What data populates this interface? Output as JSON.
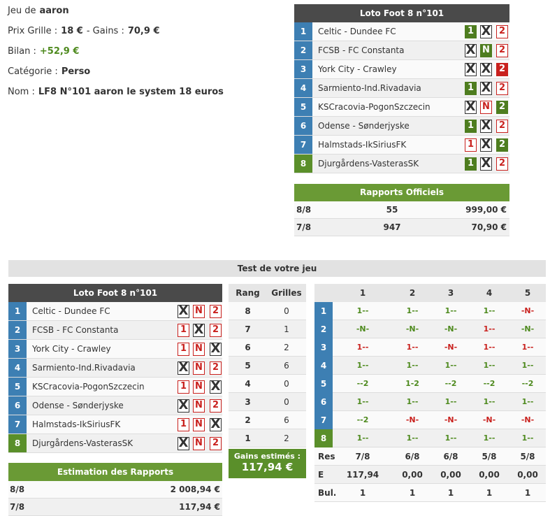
{
  "info": {
    "lines": [
      {
        "parts": [
          "Jeu de",
          "aaron"
        ]
      },
      {
        "parts": [
          "Prix Grille :",
          "18 €",
          "- Gains :",
          "70,9 €"
        ]
      },
      {
        "parts": [
          "Bilan :",
          "+52,9 €"
        ],
        "value_color": "#4e8a1e"
      },
      {
        "parts": [
          "Catégorie :",
          "Perso"
        ]
      },
      {
        "parts": [
          "Nom :",
          "LF8 N°101 aaron le system 18 euros"
        ]
      }
    ]
  },
  "grille": {
    "title": "Loto Foot 8 n°101",
    "rows": [
      {
        "num": "1",
        "color": "#3d7fb3",
        "match": "Celtic - Dundee FC",
        "picks": [
          [
            "1",
            "#4e7d1f",
            true
          ],
          [
            "X",
            "#333",
            false
          ],
          [
            "2",
            "#c9211e",
            false
          ]
        ]
      },
      {
        "num": "2",
        "color": "#3d7fb3",
        "match": "FCSB - FC Constanta",
        "picks": [
          [
            "X",
            "#333",
            false
          ],
          [
            "N",
            "#4e7d1f",
            true
          ],
          [
            "2",
            "#c9211e",
            false
          ]
        ]
      },
      {
        "num": "3",
        "color": "#3d7fb3",
        "match": "York City - Crawley",
        "picks": [
          [
            "X",
            "#333",
            false
          ],
          [
            "X",
            "#333",
            false
          ],
          [
            "2",
            "#c9211e",
            true
          ]
        ]
      },
      {
        "num": "4",
        "color": "#3d7fb3",
        "match": "Sarmiento-Ind.Rivadavia",
        "picks": [
          [
            "1",
            "#4e7d1f",
            true
          ],
          [
            "X",
            "#333",
            false
          ],
          [
            "2",
            "#c9211e",
            false
          ]
        ]
      },
      {
        "num": "5",
        "color": "#3d7fb3",
        "match": "KSCracovia-PogonSzczecin",
        "picks": [
          [
            "X",
            "#333",
            false
          ],
          [
            "N",
            "#c9211e",
            false
          ],
          [
            "2",
            "#4e7d1f",
            true
          ]
        ]
      },
      {
        "num": "6",
        "color": "#3d7fb3",
        "match": "Odense - Sønderjyske",
        "picks": [
          [
            "1",
            "#4e7d1f",
            true
          ],
          [
            "X",
            "#333",
            false
          ],
          [
            "2",
            "#c9211e",
            false
          ]
        ]
      },
      {
        "num": "7",
        "color": "#3d7fb3",
        "match": "Halmstads-IkSiriusFK",
        "picks": [
          [
            "1",
            "#c9211e",
            false
          ],
          [
            "X",
            "#333",
            false
          ],
          [
            "2",
            "#4e7d1f",
            true
          ]
        ]
      },
      {
        "num": "8",
        "color": "#5a8f2a",
        "match": "Djurgårdens-VasterasSK",
        "picks": [
          [
            "1",
            "#4e7d1f",
            true
          ],
          [
            "X",
            "#333",
            false
          ],
          [
            "2",
            "#c9211e",
            false
          ]
        ]
      }
    ]
  },
  "rapports": {
    "title": "Rapports Officiels",
    "rows": [
      [
        "8/8",
        "55",
        "999,00 €"
      ],
      [
        "7/8",
        "947",
        "70,90 €"
      ]
    ]
  },
  "test": {
    "title": "Test de votre jeu",
    "grille": {
      "title": "Loto Foot 8 n°101",
      "rows": [
        {
          "num": "1",
          "color": "#3d7fb3",
          "match": "Celtic - Dundee FC",
          "picks": [
            [
              "X",
              "#333",
              false
            ],
            [
              "N",
              "#c9211e",
              false
            ],
            [
              "2",
              "#c9211e",
              false
            ]
          ]
        },
        {
          "num": "2",
          "color": "#3d7fb3",
          "match": "FCSB - FC Constanta",
          "picks": [
            [
              "1",
              "#c9211e",
              false
            ],
            [
              "X",
              "#333",
              false
            ],
            [
              "2",
              "#c9211e",
              false
            ]
          ]
        },
        {
          "num": "3",
          "color": "#3d7fb3",
          "match": "York City - Crawley",
          "picks": [
            [
              "1",
              "#c9211e",
              false
            ],
            [
              "N",
              "#c9211e",
              false
            ],
            [
              "X",
              "#333",
              false
            ]
          ]
        },
        {
          "num": "4",
          "color": "#3d7fb3",
          "match": "Sarmiento-Ind.Rivadavia",
          "picks": [
            [
              "X",
              "#333",
              false
            ],
            [
              "N",
              "#c9211e",
              false
            ],
            [
              "2",
              "#c9211e",
              false
            ]
          ]
        },
        {
          "num": "5",
          "color": "#3d7fb3",
          "match": "KSCracovia-PogonSzczecin",
          "picks": [
            [
              "1",
              "#c9211e",
              false
            ],
            [
              "N",
              "#c9211e",
              false
            ],
            [
              "X",
              "#333",
              false
            ]
          ]
        },
        {
          "num": "6",
          "color": "#3d7fb3",
          "match": "Odense - Sønderjyske",
          "picks": [
            [
              "X",
              "#333",
              false
            ],
            [
              "N",
              "#c9211e",
              false
            ],
            [
              "2",
              "#c9211e",
              false
            ]
          ]
        },
        {
          "num": "7",
          "color": "#3d7fb3",
          "match": "Halmstads-IkSiriusFK",
          "picks": [
            [
              "1",
              "#c9211e",
              false
            ],
            [
              "N",
              "#c9211e",
              false
            ],
            [
              "X",
              "#333",
              false
            ]
          ]
        },
        {
          "num": "8",
          "color": "#5a8f2a",
          "match": "Djurgårdens-VasterasSK",
          "picks": [
            [
              "X",
              "#333",
              false
            ],
            [
              "N",
              "#c9211e",
              false
            ],
            [
              "2",
              "#c9211e",
              false
            ]
          ]
        }
      ]
    },
    "rangs": {
      "headers": [
        "Rang",
        "Grilles"
      ],
      "rows": [
        [
          8,
          0
        ],
        [
          7,
          1
        ],
        [
          6,
          2
        ],
        [
          5,
          6
        ],
        [
          4,
          0
        ],
        [
          3,
          0
        ],
        [
          2,
          6
        ],
        [
          1,
          2
        ]
      ]
    },
    "gains": {
      "label": "Gains estimés :",
      "value": "117,94 €"
    },
    "estimation": {
      "title": "Estimation des Rapports",
      "rows": [
        [
          "8/8",
          "2 008,94 €"
        ],
        [
          "7/8",
          "117,94 €"
        ]
      ]
    },
    "combis": {
      "headers": [
        "1",
        "2",
        "3",
        "4",
        "5"
      ],
      "rows": [
        {
          "num": "1",
          "color": "#3d7fb3",
          "cells": [
            [
              "1--",
              "#4e8a1e"
            ],
            [
              "1--",
              "#4e8a1e"
            ],
            [
              "1--",
              "#4e8a1e"
            ],
            [
              "1--",
              "#4e8a1e"
            ],
            [
              "-N-",
              "#c9211e"
            ]
          ]
        },
        {
          "num": "2",
          "color": "#3d7fb3",
          "cells": [
            [
              "-N-",
              "#4e8a1e"
            ],
            [
              "-N-",
              "#4e8a1e"
            ],
            [
              "-N-",
              "#4e8a1e"
            ],
            [
              "1--",
              "#c9211e"
            ],
            [
              "-N-",
              "#4e8a1e"
            ]
          ]
        },
        {
          "num": "3",
          "color": "#3d7fb3",
          "cells": [
            [
              "1--",
              "#c9211e"
            ],
            [
              "1--",
              "#c9211e"
            ],
            [
              "-N-",
              "#c9211e"
            ],
            [
              "1--",
              "#c9211e"
            ],
            [
              "1--",
              "#c9211e"
            ]
          ]
        },
        {
          "num": "4",
          "color": "#3d7fb3",
          "cells": [
            [
              "1--",
              "#4e8a1e"
            ],
            [
              "1--",
              "#4e8a1e"
            ],
            [
              "1--",
              "#4e8a1e"
            ],
            [
              "1--",
              "#4e8a1e"
            ],
            [
              "1--",
              "#4e8a1e"
            ]
          ]
        },
        {
          "num": "5",
          "color": "#3d7fb3",
          "cells": [
            [
              "--2",
              "#4e8a1e"
            ],
            [
              "1-2",
              "#4e8a1e"
            ],
            [
              "--2",
              "#4e8a1e"
            ],
            [
              "--2",
              "#4e8a1e"
            ],
            [
              "--2",
              "#4e8a1e"
            ]
          ]
        },
        {
          "num": "6",
          "color": "#3d7fb3",
          "cells": [
            [
              "1--",
              "#4e8a1e"
            ],
            [
              "1--",
              "#4e8a1e"
            ],
            [
              "1--",
              "#4e8a1e"
            ],
            [
              "1--",
              "#4e8a1e"
            ],
            [
              "1--",
              "#4e8a1e"
            ]
          ]
        },
        {
          "num": "7",
          "color": "#3d7fb3",
          "cells": [
            [
              "--2",
              "#4e8a1e"
            ],
            [
              "-N-",
              "#c9211e"
            ],
            [
              "-N-",
              "#c9211e"
            ],
            [
              "-N-",
              "#c9211e"
            ],
            [
              "-N-",
              "#c9211e"
            ]
          ]
        },
        {
          "num": "8",
          "color": "#5a8f2a",
          "cells": [
            [
              "1--",
              "#4e8a1e"
            ],
            [
              "1--",
              "#4e8a1e"
            ],
            [
              "1--",
              "#4e8a1e"
            ],
            [
              "1--",
              "#4e8a1e"
            ],
            [
              "1--",
              "#4e8a1e"
            ]
          ]
        }
      ],
      "summary": [
        {
          "label": "Res",
          "values": [
            "7/8",
            "6/8",
            "6/8",
            "5/8",
            "5/8"
          ]
        },
        {
          "label": "E",
          "values": [
            "117,94",
            "0,00",
            "0,00",
            "0,00",
            "0,00"
          ]
        },
        {
          "label": "Bul.",
          "values": [
            1,
            1,
            1,
            1,
            1
          ]
        }
      ]
    }
  }
}
